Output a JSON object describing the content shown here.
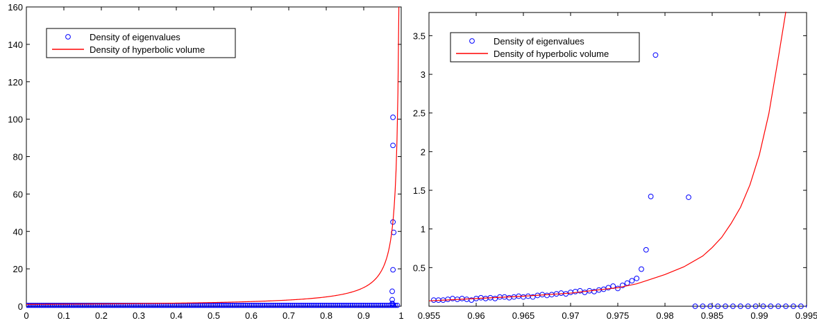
{
  "chart_data": [
    {
      "type": "scatter",
      "title": "",
      "xlabel": "",
      "ylabel": "",
      "xlim": [
        0,
        1
      ],
      "ylim": [
        0,
        160
      ],
      "xticks": [
        0,
        0.1,
        0.2,
        0.3,
        0.4,
        0.5,
        0.6,
        0.7,
        0.8,
        0.9,
        1
      ],
      "xtick_labels": [
        "0",
        "0.1",
        "0.2",
        "0.3",
        "0.4",
        "0.5",
        "0.6",
        "0.7",
        "0.8",
        "0.9",
        "1"
      ],
      "yticks": [
        0,
        20,
        40,
        60,
        80,
        100,
        120,
        140,
        160
      ],
      "ytick_labels": [
        "0",
        "20",
        "40",
        "60",
        "80",
        "100",
        "120",
        "140",
        "160"
      ],
      "grid": false,
      "legend": {
        "placement": "top-left",
        "entries": [
          "Density of eigenvalues",
          "Density of hyperbolic volume"
        ]
      },
      "series": [
        {
          "name": "Density of eigenvalues",
          "kind": "markers",
          "marker": "circle-open",
          "color": "#0000ff",
          "baseline": {
            "x_from": 0,
            "x_to": 0.99,
            "step": 0.005,
            "y": 0.5
          },
          "points": [
            [
              0.978,
              101
            ],
            [
              0.978,
              86
            ],
            [
              0.978,
              45
            ],
            [
              0.98,
              39.5
            ],
            [
              0.978,
              19.5
            ],
            [
              0.976,
              8
            ],
            [
              0.976,
              3.5
            ],
            [
              0.976,
              1.5
            ],
            [
              0.977,
              1
            ]
          ]
        },
        {
          "name": "Density of hyperbolic volume",
          "kind": "line",
          "color": "#ff0000",
          "function": "1/(1-x)",
          "x_range": [
            0,
            0.99375
          ]
        }
      ]
    },
    {
      "type": "scatter",
      "title": "",
      "xlabel": "",
      "ylabel": "",
      "xlim": [
        0.955,
        0.995
      ],
      "ylim": [
        0,
        3.8
      ],
      "xticks": [
        0.955,
        0.96,
        0.965,
        0.97,
        0.975,
        0.98,
        0.985,
        0.99,
        0.995
      ],
      "xtick_labels": [
        "0.955",
        "0.96",
        "0.965",
        "0.97",
        "0.975",
        "0.98",
        "0.985",
        "0.99",
        "0.995"
      ],
      "yticks": [
        0.5,
        1,
        1.5,
        2,
        2.5,
        3,
        3.5
      ],
      "ytick_labels": [
        "0.5",
        "1",
        "1.5",
        "2",
        "2.5",
        "3",
        "3.5"
      ],
      "grid": false,
      "legend": {
        "placement": "top-left",
        "entries": [
          "Density of eigenvalues",
          "Density of hyperbolic volume"
        ]
      },
      "series": [
        {
          "name": "Density of eigenvalues",
          "kind": "markers",
          "marker": "circle-open",
          "color": "#0000ff",
          "points": [
            [
              0.9555,
              0.08
            ],
            [
              0.956,
              0.08
            ],
            [
              0.9565,
              0.08
            ],
            [
              0.957,
              0.09
            ],
            [
              0.9575,
              0.1
            ],
            [
              0.958,
              0.09
            ],
            [
              0.9585,
              0.1
            ],
            [
              0.959,
              0.09
            ],
            [
              0.9595,
              0.08
            ],
            [
              0.96,
              0.1
            ],
            [
              0.9605,
              0.11
            ],
            [
              0.961,
              0.1
            ],
            [
              0.9615,
              0.11
            ],
            [
              0.962,
              0.1
            ],
            [
              0.9625,
              0.12
            ],
            [
              0.963,
              0.12
            ],
            [
              0.9635,
              0.11
            ],
            [
              0.964,
              0.12
            ],
            [
              0.9645,
              0.13
            ],
            [
              0.965,
              0.12
            ],
            [
              0.9655,
              0.13
            ],
            [
              0.966,
              0.12
            ],
            [
              0.9665,
              0.14
            ],
            [
              0.967,
              0.15
            ],
            [
              0.9675,
              0.14
            ],
            [
              0.968,
              0.15
            ],
            [
              0.9685,
              0.16
            ],
            [
              0.969,
              0.17
            ],
            [
              0.9695,
              0.16
            ],
            [
              0.97,
              0.18
            ],
            [
              0.9705,
              0.19
            ],
            [
              0.971,
              0.2
            ],
            [
              0.9715,
              0.18
            ],
            [
              0.972,
              0.2
            ],
            [
              0.9725,
              0.19
            ],
            [
              0.973,
              0.21
            ],
            [
              0.9735,
              0.22
            ],
            [
              0.974,
              0.24
            ],
            [
              0.9745,
              0.26
            ],
            [
              0.975,
              0.23
            ],
            [
              0.9755,
              0.27
            ],
            [
              0.976,
              0.3
            ],
            [
              0.9765,
              0.33
            ],
            [
              0.977,
              0.36
            ],
            [
              0.9775,
              0.48
            ],
            [
              0.978,
              0.73
            ],
            [
              0.9785,
              1.42
            ],
            [
              0.979,
              3.25
            ],
            [
              0.9825,
              1.41
            ],
            [
              0.9832,
              0
            ],
            [
              0.984,
              0
            ],
            [
              0.9848,
              0
            ],
            [
              0.9856,
              0
            ],
            [
              0.9864,
              0
            ],
            [
              0.9872,
              0
            ],
            [
              0.988,
              0
            ],
            [
              0.9888,
              0
            ],
            [
              0.9896,
              0
            ],
            [
              0.9904,
              0
            ],
            [
              0.9912,
              0
            ],
            [
              0.992,
              0
            ],
            [
              0.9928,
              0
            ],
            [
              0.9936,
              0
            ],
            [
              0.9944,
              0
            ],
            [
              0.9952,
              0
            ]
          ]
        },
        {
          "name": "Density of hyperbolic volume",
          "kind": "line",
          "color": "#ff0000",
          "points": [
            [
              0.955,
              0.07
            ],
            [
              0.96,
              0.1
            ],
            [
              0.965,
              0.13
            ],
            [
              0.97,
              0.17
            ],
            [
              0.975,
              0.24
            ],
            [
              0.977,
              0.29
            ],
            [
              0.978,
              0.33
            ],
            [
              0.98,
              0.41
            ],
            [
              0.982,
              0.51
            ],
            [
              0.984,
              0.65
            ],
            [
              0.985,
              0.76
            ],
            [
              0.986,
              0.89
            ],
            [
              0.987,
              1.07
            ],
            [
              0.988,
              1.28
            ],
            [
              0.989,
              1.57
            ],
            [
              0.99,
              1.96
            ],
            [
              0.991,
              2.49
            ],
            [
              0.992,
              3.21
            ],
            [
              0.9928,
              3.81
            ]
          ]
        }
      ]
    }
  ]
}
